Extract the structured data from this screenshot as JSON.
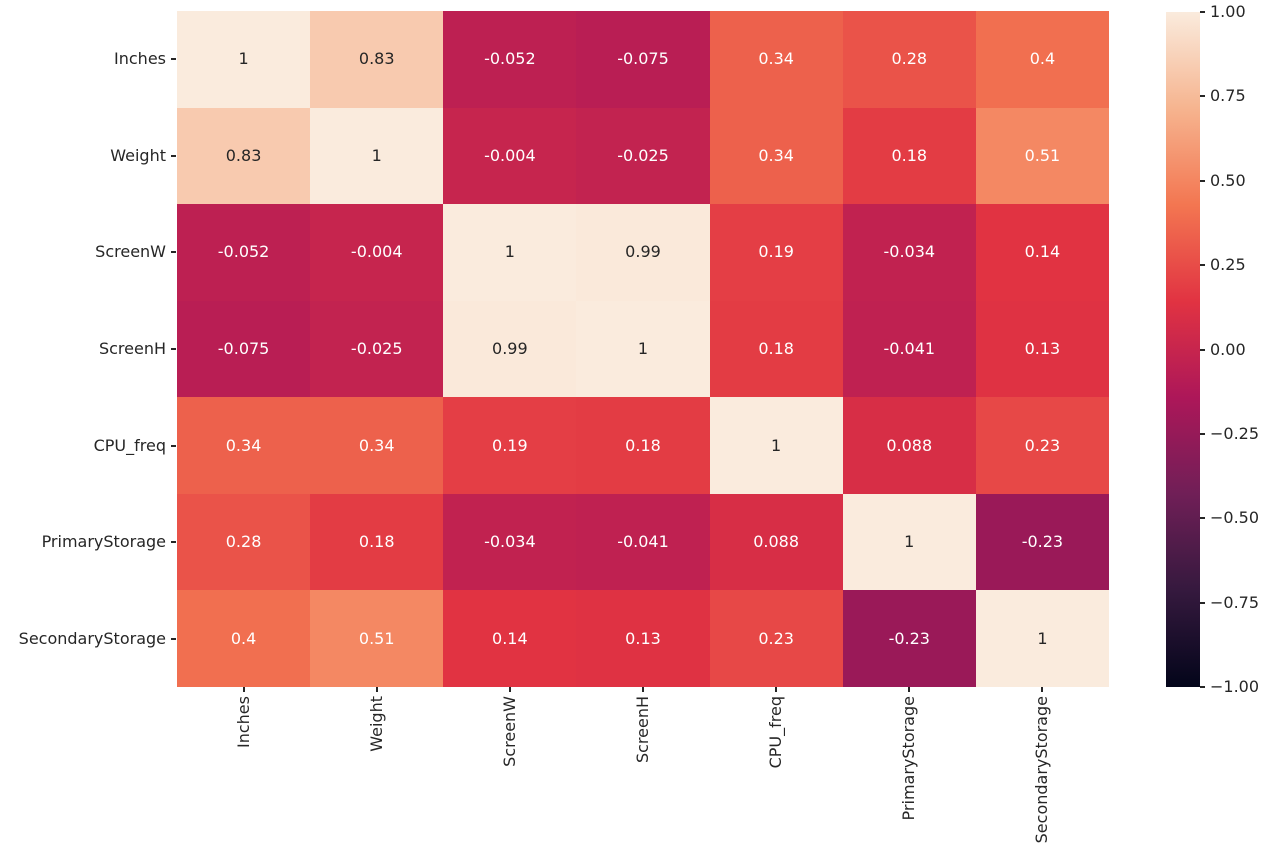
{
  "chart_data": {
    "type": "heatmap",
    "title": "",
    "categories": [
      "Inches",
      "Weight",
      "ScreenW",
      "ScreenH",
      "CPU_freq",
      "PrimaryStorage",
      "SecondaryStorage"
    ],
    "row_labels": [
      "Inches",
      "Weight",
      "ScreenW",
      "ScreenH",
      "CPU_freq",
      "PrimaryStorage",
      "SecondaryStorage"
    ],
    "col_labels": [
      "Inches",
      "Weight",
      "ScreenW",
      "ScreenH",
      "CPU_freq",
      "PrimaryStorage",
      "SecondaryStorage"
    ],
    "matrix": [
      [
        1,
        0.83,
        -0.052,
        -0.075,
        0.34,
        0.28,
        0.4
      ],
      [
        0.83,
        1,
        -0.004,
        -0.025,
        0.34,
        0.18,
        0.51
      ],
      [
        -0.052,
        -0.004,
        1,
        0.99,
        0.19,
        -0.034,
        0.14
      ],
      [
        -0.075,
        -0.025,
        0.99,
        1,
        0.18,
        -0.041,
        0.13
      ],
      [
        0.34,
        0.34,
        0.19,
        0.18,
        1,
        0.088,
        0.23
      ],
      [
        0.28,
        0.18,
        -0.034,
        -0.041,
        0.088,
        1,
        -0.23
      ],
      [
        0.4,
        0.51,
        0.14,
        0.13,
        0.23,
        -0.23,
        1
      ]
    ],
    "vmin": -1,
    "vmax": 1,
    "annotated": true,
    "grid": false,
    "legend_position": "colorbar-right",
    "colorbar_ticks": [
      {
        "value": 1.0,
        "label": "1.00"
      },
      {
        "value": 0.75,
        "label": "0.75"
      },
      {
        "value": 0.5,
        "label": "0.50"
      },
      {
        "value": 0.25,
        "label": "0.25"
      },
      {
        "value": 0.0,
        "label": "0.00"
      },
      {
        "value": -0.25,
        "label": "−0.25"
      },
      {
        "value": -0.5,
        "label": "−0.50"
      },
      {
        "value": -0.75,
        "label": "−0.75"
      },
      {
        "value": -1.0,
        "label": "−1.00"
      }
    ],
    "colormap": {
      "name": "rocket",
      "stops": [
        [
          0.0,
          "#03051A"
        ],
        [
          0.143,
          "#35193E"
        ],
        [
          0.286,
          "#701F57"
        ],
        [
          0.429,
          "#AD1759"
        ],
        [
          0.571,
          "#E13342"
        ],
        [
          0.714,
          "#F37651"
        ],
        [
          0.857,
          "#F6B48F"
        ],
        [
          1.0,
          "#FAEBDD"
        ]
      ]
    },
    "colors": {
      "background": "#ffffff",
      "tick_color": "#262626",
      "annotation_dark": "#262626",
      "annotation_light": "#ffffff"
    }
  }
}
